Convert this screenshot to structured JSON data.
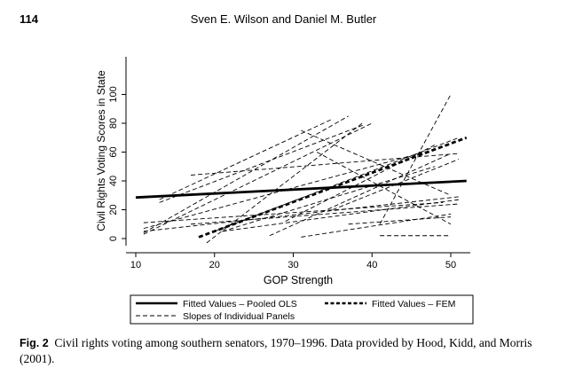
{
  "page": {
    "number": "114",
    "running_head": "Sven E. Wilson and Daniel M. Butler"
  },
  "figure": {
    "label": "Fig. 2",
    "caption": "Civil rights voting among southern senators, 1970–1996. Data provided by Hood, Kidd, and Morris (2001)."
  },
  "chart_data": {
    "type": "line",
    "xlabel": "GOP Strength",
    "ylabel": "Civil Rights Voting Scores in State",
    "xlim": [
      8.5,
      53
    ],
    "ylim": [
      -8,
      102
    ],
    "xticks": [
      10,
      20,
      30,
      40,
      50
    ],
    "yticks": [
      0,
      20,
      40,
      60,
      80,
      100
    ],
    "grid": false,
    "legend_placement": "bottom",
    "series": [
      {
        "name": "Fitted Values – Pooled OLS",
        "style": "solid",
        "color": "#000000",
        "x": [
          10,
          52
        ],
        "y": [
          28.5,
          40
        ]
      },
      {
        "name": "Fitted Values – FEM",
        "style": "thick-dashed",
        "color": "#000000",
        "x": [
          18,
          52
        ],
        "y": [
          1,
          70
        ]
      },
      {
        "name": "Slopes of Individual Panels",
        "style": "dashed",
        "color": "#000000",
        "segments": [
          {
            "x": [
              11,
              37
            ],
            "y": [
              4,
              85
            ]
          },
          {
            "x": [
              13,
              35
            ],
            "y": [
              27,
              83
            ]
          },
          {
            "x": [
              13,
              39
            ],
            "y": [
              25,
              79
            ]
          },
          {
            "x": [
              11,
              40
            ],
            "y": [
              3,
              80
            ]
          },
          {
            "x": [
              19,
              39
            ],
            "y": [
              -3,
              81
            ]
          },
          {
            "x": [
              17,
              51
            ],
            "y": [
              44,
              59
            ]
          },
          {
            "x": [
              29,
              48
            ],
            "y": [
              12,
              65
            ]
          },
          {
            "x": [
              31,
              50
            ],
            "y": [
              75,
              30
            ]
          },
          {
            "x": [
              41,
              50
            ],
            "y": [
              10,
              100
            ]
          },
          {
            "x": [
              33,
              50
            ],
            "y": [
              60,
              10
            ]
          },
          {
            "x": [
              20,
              51
            ],
            "y": [
              5,
              70
            ]
          },
          {
            "x": [
              35,
              51
            ],
            "y": [
              20,
              55
            ]
          },
          {
            "x": [
              11,
              48
            ],
            "y": [
              7,
              62
            ]
          },
          {
            "x": [
              27,
              50
            ],
            "y": [
              2,
              59
            ]
          },
          {
            "x": [
              11,
              49
            ],
            "y": [
              11,
              25
            ]
          },
          {
            "x": [
              11,
              51
            ],
            "y": [
              5,
              29
            ]
          },
          {
            "x": [
              21,
              51
            ],
            "y": [
              5,
              27
            ]
          },
          {
            "x": [
              31,
              50
            ],
            "y": [
              1,
              17
            ]
          },
          {
            "x": [
              41,
              50
            ],
            "y": [
              2,
              2
            ]
          },
          {
            "x": [
              37,
              50
            ],
            "y": [
              10,
              15
            ]
          },
          {
            "x": [
              17,
              51
            ],
            "y": [
              10,
              24
            ]
          },
          {
            "x": [
              21,
              48
            ],
            "y": [
              5,
              50
            ]
          }
        ]
      }
    ]
  }
}
